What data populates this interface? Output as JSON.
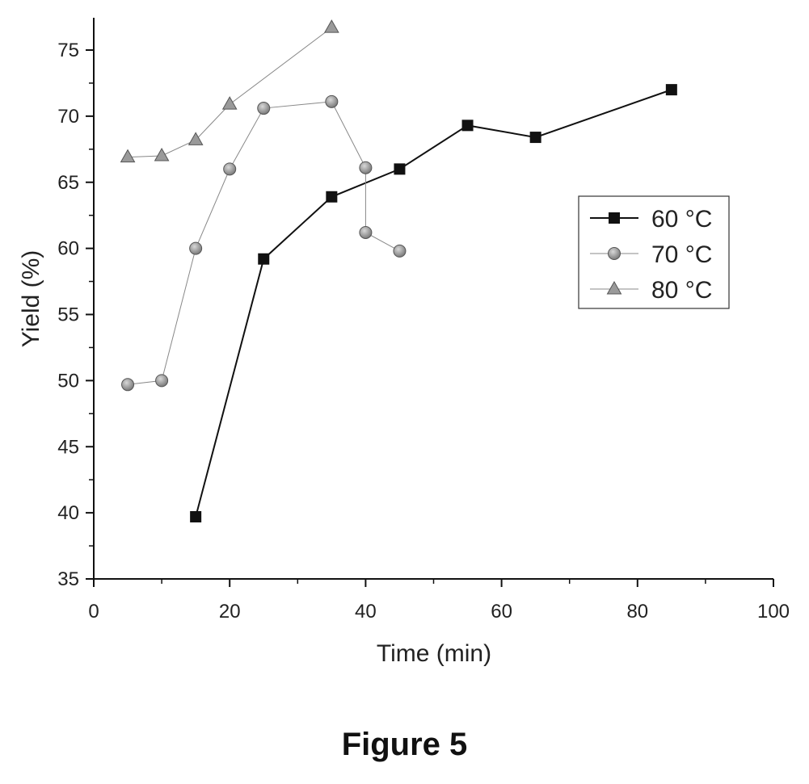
{
  "caption": "Figure 5",
  "chart_data": {
    "type": "line",
    "title": "",
    "xlabel": "Time (min)",
    "ylabel": "Yield (%)",
    "xlim": [
      0,
      100
    ],
    "ylim": [
      35,
      77
    ],
    "xticks": [
      0,
      20,
      40,
      60,
      80,
      100
    ],
    "yticks": [
      35,
      40,
      45,
      50,
      55,
      60,
      65,
      70,
      75
    ],
    "grid": false,
    "legend_position": "right",
    "series": [
      {
        "name": "60 °C",
        "marker": "square",
        "color": "#111111",
        "line_width": 2,
        "x": [
          15,
          25,
          35,
          45,
          55,
          65,
          85
        ],
        "y": [
          39.7,
          59.2,
          63.9,
          66.0,
          69.3,
          68.4,
          72.0
        ]
      },
      {
        "name": "70 °C",
        "marker": "circle",
        "color": "#888888",
        "line_width": 1,
        "x": [
          5,
          10,
          15,
          20,
          25,
          35,
          40,
          40,
          45
        ],
        "y": [
          49.7,
          50.0,
          60.0,
          66.0,
          70.6,
          71.1,
          66.1,
          61.2,
          59.8
        ]
      },
      {
        "name": "80 °C",
        "marker": "triangle",
        "color": "#888888",
        "line_width": 1,
        "x": [
          5,
          10,
          15,
          20,
          35
        ],
        "y": [
          66.9,
          67.0,
          68.2,
          70.9,
          76.7
        ]
      }
    ]
  }
}
